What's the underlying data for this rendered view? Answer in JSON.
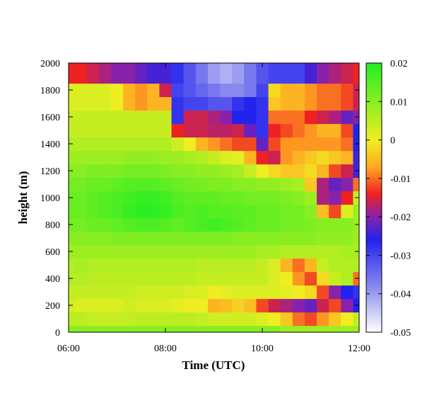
{
  "chart_data": {
    "type": "heatmap",
    "title": "",
    "xlabel": "Time (UTC)",
    "ylabel": "height (m)",
    "x_ticks": [
      "06:00",
      "08:00",
      "10:00",
      "12:00"
    ],
    "x_tick_hours": [
      6,
      8,
      10,
      12
    ],
    "xlim_hours": [
      6,
      12
    ],
    "y_ticks": [
      0,
      200,
      400,
      600,
      800,
      1000,
      1200,
      1400,
      1600,
      1800,
      2000
    ],
    "ylim": [
      0,
      2000
    ],
    "colorbar": {
      "ticks": [
        "0.02",
        "0.01",
        "0",
        "-0.01",
        "-0.02",
        "-0.03",
        "-0.04",
        "-0.05"
      ],
      "tick_values": [
        0.02,
        0.01,
        0,
        -0.01,
        -0.02,
        -0.03,
        -0.04,
        -0.05
      ],
      "range": [
        -0.05,
        0.02
      ],
      "colormap": [
        {
          "v": 0.02,
          "color": "#22ee22"
        },
        {
          "v": 0.01,
          "color": "#88ee22"
        },
        {
          "v": 0.0,
          "color": "#eeee22"
        },
        {
          "v": -0.007,
          "color": "#ffaa22"
        },
        {
          "v": -0.014,
          "color": "#ee2222"
        },
        {
          "v": -0.02,
          "color": "#8822aa"
        },
        {
          "v": -0.026,
          "color": "#2222ee"
        },
        {
          "v": -0.038,
          "color": "#8888ee"
        },
        {
          "v": -0.05,
          "color": "#ffffff"
        }
      ]
    },
    "time_hours": [
      6.0,
      6.25,
      6.5,
      6.75,
      7.0,
      7.25,
      7.5,
      7.75,
      8.0,
      8.25,
      8.5,
      8.75,
      9.0,
      9.25,
      9.5,
      9.75,
      10.0,
      10.25,
      10.5,
      10.75,
      11.0,
      11.25,
      11.5,
      11.75,
      12.0
    ],
    "heights_m": [
      0,
      100,
      200,
      300,
      400,
      500,
      600,
      700,
      800,
      900,
      1000,
      1100,
      1200,
      1300,
      1400,
      1500,
      1600,
      1700,
      1800,
      1900,
      2000
    ],
    "values": [
      [
        0.01,
        0.01,
        0.01,
        0.01,
        0.01,
        0.01,
        0.01,
        0.01,
        0.01,
        0.01,
        0.01,
        0.01,
        0.01,
        0.01,
        0.01,
        0.01,
        0.01,
        0.01,
        0.008,
        0.008,
        0.008,
        0.008,
        0.008,
        0.008,
        0.008
      ],
      [
        0.005,
        0.005,
        0.004,
        0.004,
        0.004,
        0.004,
        0.005,
        0.005,
        0.005,
        0.005,
        0.005,
        0.004,
        0.003,
        0.003,
        0.003,
        0.003,
        0.002,
        0.0,
        -0.004,
        -0.01,
        -0.012,
        -0.008,
        -0.004,
        0.0,
        0.004
      ],
      [
        0.003,
        0.002,
        0.002,
        0.002,
        0.002,
        0.003,
        0.002,
        0.002,
        0.002,
        0.001,
        0.0,
        0.0,
        -0.006,
        -0.005,
        -0.003,
        -0.005,
        -0.012,
        -0.016,
        -0.018,
        -0.02,
        -0.022,
        -0.016,
        -0.012,
        -0.02,
        -0.026
      ],
      [
        0.004,
        0.004,
        0.004,
        0.004,
        0.004,
        0.004,
        0.003,
        0.003,
        0.003,
        0.003,
        0.002,
        0.002,
        0.0,
        0.001,
        0.002,
        0.002,
        0.002,
        0.002,
        0.001,
        0.0,
        -0.002,
        -0.012,
        -0.02,
        -0.026,
        -0.028
      ],
      [
        0.006,
        0.006,
        0.005,
        0.005,
        0.005,
        0.005,
        0.005,
        0.005,
        0.005,
        0.005,
        0.005,
        0.004,
        0.004,
        0.004,
        0.004,
        0.004,
        0.004,
        0.002,
        0.0,
        -0.008,
        -0.012,
        -0.002,
        0.004,
        0.006,
        -0.01
      ],
      [
        0.006,
        0.007,
        0.006,
        0.006,
        0.006,
        0.006,
        0.006,
        0.006,
        0.006,
        0.006,
        0.006,
        0.005,
        0.005,
        0.005,
        0.005,
        0.005,
        0.004,
        0.002,
        -0.006,
        -0.01,
        -0.006,
        0.004,
        0.006,
        0.006,
        0.006
      ],
      [
        0.008,
        0.008,
        0.008,
        0.008,
        0.008,
        0.008,
        0.008,
        0.008,
        0.008,
        0.008,
        0.008,
        0.008,
        0.008,
        0.008,
        0.008,
        0.008,
        0.007,
        0.007,
        0.006,
        0.006,
        0.006,
        0.006,
        0.006,
        0.007,
        0.007
      ],
      [
        0.01,
        0.01,
        0.01,
        0.01,
        0.011,
        0.011,
        0.011,
        0.011,
        0.011,
        0.011,
        0.011,
        0.011,
        0.011,
        0.011,
        0.01,
        0.01,
        0.01,
        0.01,
        0.01,
        0.01,
        0.01,
        0.009,
        0.009,
        0.009,
        0.008
      ],
      [
        0.012,
        0.012,
        0.013,
        0.013,
        0.014,
        0.015,
        0.016,
        0.016,
        0.015,
        0.014,
        0.015,
        0.016,
        0.017,
        0.016,
        0.015,
        0.014,
        0.013,
        0.013,
        0.012,
        0.012,
        0.011,
        0.01,
        0.01,
        0.01,
        0.008
      ],
      [
        0.013,
        0.013,
        0.014,
        0.015,
        0.016,
        0.018,
        0.019,
        0.019,
        0.018,
        0.016,
        0.015,
        0.016,
        0.015,
        0.015,
        0.014,
        0.014,
        0.013,
        0.013,
        0.012,
        0.012,
        0.01,
        -0.005,
        -0.012,
        0.002,
        0.008
      ],
      [
        0.013,
        0.013,
        0.014,
        0.015,
        0.016,
        0.017,
        0.018,
        0.018,
        0.017,
        0.015,
        0.014,
        0.014,
        0.014,
        0.013,
        0.013,
        0.012,
        0.012,
        0.012,
        0.011,
        0.01,
        0.008,
        -0.018,
        -0.02,
        -0.014,
        0.004
      ],
      [
        0.012,
        0.012,
        0.013,
        0.013,
        0.014,
        0.015,
        0.015,
        0.015,
        0.014,
        0.013,
        0.012,
        0.012,
        0.011,
        0.011,
        0.01,
        0.01,
        0.009,
        0.009,
        0.008,
        0.007,
        -0.004,
        -0.018,
        -0.022,
        -0.02,
        -0.01
      ],
      [
        0.01,
        0.01,
        0.011,
        0.011,
        0.011,
        0.012,
        0.012,
        0.012,
        0.011,
        0.01,
        0.01,
        0.009,
        0.009,
        0.008,
        0.007,
        0.004,
        0.0,
        -0.002,
        -0.004,
        -0.004,
        -0.002,
        -0.006,
        -0.012,
        -0.016,
        -0.024
      ],
      [
        0.008,
        0.008,
        0.008,
        0.008,
        0.008,
        0.009,
        0.009,
        0.009,
        0.008,
        0.008,
        0.007,
        0.006,
        0.004,
        0.002,
        0.001,
        -0.006,
        -0.014,
        -0.016,
        -0.008,
        -0.006,
        -0.004,
        -0.002,
        -0.004,
        -0.006,
        -0.024
      ],
      [
        0.006,
        0.006,
        0.006,
        0.006,
        0.006,
        0.006,
        0.006,
        0.006,
        0.006,
        0.003,
        0.0,
        -0.006,
        -0.008,
        -0.01,
        -0.012,
        -0.012,
        -0.022,
        -0.012,
        -0.008,
        -0.008,
        -0.008,
        -0.008,
        -0.008,
        -0.01,
        -0.026
      ],
      [
        0.004,
        0.004,
        0.004,
        0.004,
        0.004,
        0.004,
        0.004,
        0.004,
        0.004,
        -0.014,
        -0.016,
        -0.016,
        -0.017,
        -0.017,
        -0.016,
        -0.022,
        -0.028,
        -0.014,
        -0.012,
        -0.01,
        -0.008,
        -0.006,
        -0.006,
        -0.012,
        -0.026
      ],
      [
        0.004,
        0.004,
        0.004,
        0.004,
        0.004,
        0.004,
        0.004,
        0.004,
        0.004,
        -0.028,
        -0.016,
        -0.016,
        -0.018,
        -0.02,
        -0.026,
        -0.026,
        -0.028,
        -0.01,
        -0.01,
        -0.01,
        -0.014,
        -0.016,
        -0.018,
        -0.022,
        -0.02
      ],
      [
        0.002,
        0.002,
        0.002,
        0.002,
        0.0,
        -0.006,
        -0.008,
        -0.006,
        -0.006,
        -0.028,
        -0.03,
        -0.03,
        -0.032,
        -0.032,
        -0.028,
        -0.026,
        -0.028,
        -0.004,
        -0.006,
        -0.006,
        -0.008,
        -0.01,
        -0.01,
        -0.012,
        -0.016
      ],
      [
        0.002,
        0.002,
        0.002,
        0.002,
        0.0,
        -0.006,
        -0.008,
        -0.006,
        -0.016,
        -0.03,
        -0.032,
        -0.034,
        -0.036,
        -0.038,
        -0.038,
        -0.036,
        -0.03,
        -0.002,
        -0.006,
        -0.006,
        -0.008,
        -0.01,
        -0.01,
        -0.012,
        -0.016
      ],
      [
        -0.014,
        -0.014,
        -0.016,
        -0.018,
        -0.02,
        -0.02,
        -0.022,
        -0.024,
        -0.024,
        -0.028,
        -0.032,
        -0.036,
        -0.04,
        -0.042,
        -0.04,
        -0.036,
        -0.032,
        -0.03,
        -0.03,
        -0.03,
        -0.024,
        -0.02,
        -0.018,
        -0.016,
        -0.014
      ],
      [
        -0.014,
        -0.014,
        -0.016,
        -0.018,
        -0.02,
        -0.02,
        -0.022,
        -0.024,
        -0.024,
        -0.028,
        -0.032,
        -0.036,
        -0.04,
        -0.042,
        -0.04,
        -0.036,
        -0.032,
        -0.03,
        -0.03,
        -0.03,
        -0.024,
        -0.02,
        -0.018,
        -0.016,
        -0.014
      ]
    ]
  }
}
